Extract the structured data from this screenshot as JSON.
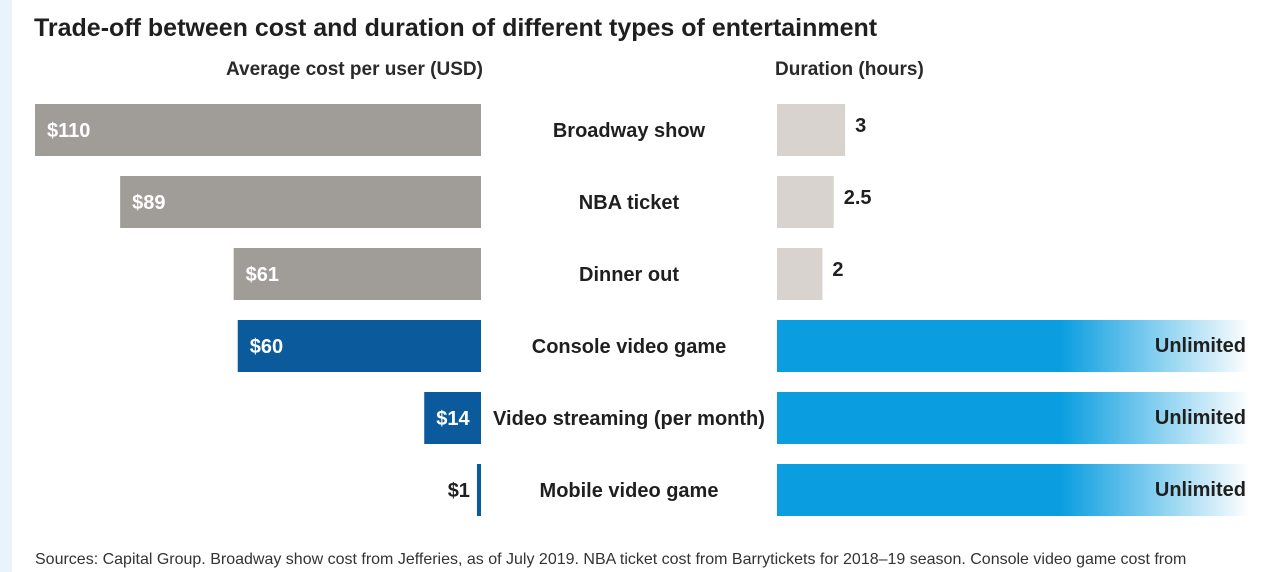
{
  "chart_data": {
    "type": "bar",
    "title": "Trade-off between cost and duration of different types of entertainment",
    "left_axis_label": "Average cost per user (USD)",
    "right_axis_label": "Duration (hours)",
    "categories": [
      "Broadway show",
      "NBA ticket",
      "Dinner out",
      "Console video game",
      "Video streaming (per month)",
      "Mobile video game"
    ],
    "series": [
      {
        "values": [
          110,
          89,
          61,
          60,
          14,
          1
        ],
        "labels": [
          "$110",
          "$89",
          "$61",
          "$60",
          "$14",
          "$1"
        ],
        "colors": [
          "#a09c97",
          "#a09c97",
          "#a09c97",
          "#0a5a9c",
          "#0a5a9c",
          "#0a5a9c"
        ]
      },
      {
        "values": [
          3,
          2.5,
          2,
          null,
          null,
          null
        ],
        "labels": [
          "3",
          "2.5",
          "2",
          "Unlimited",
          "Unlimited",
          "Unlimited"
        ],
        "unlimited": [
          false,
          false,
          false,
          true,
          true,
          true
        ],
        "color": "#d8d3cf",
        "unlimited_color": "#0a9ee0"
      }
    ],
    "cost_max": 110,
    "duration_max_shown": 3,
    "grid": false,
    "legend": "none"
  },
  "source_note": "Sources: Capital Group. Broadway show cost from Jefferies, as of July 2019. NBA ticket cost from Barrytickets for 2018–19 season. Console video game cost from"
}
